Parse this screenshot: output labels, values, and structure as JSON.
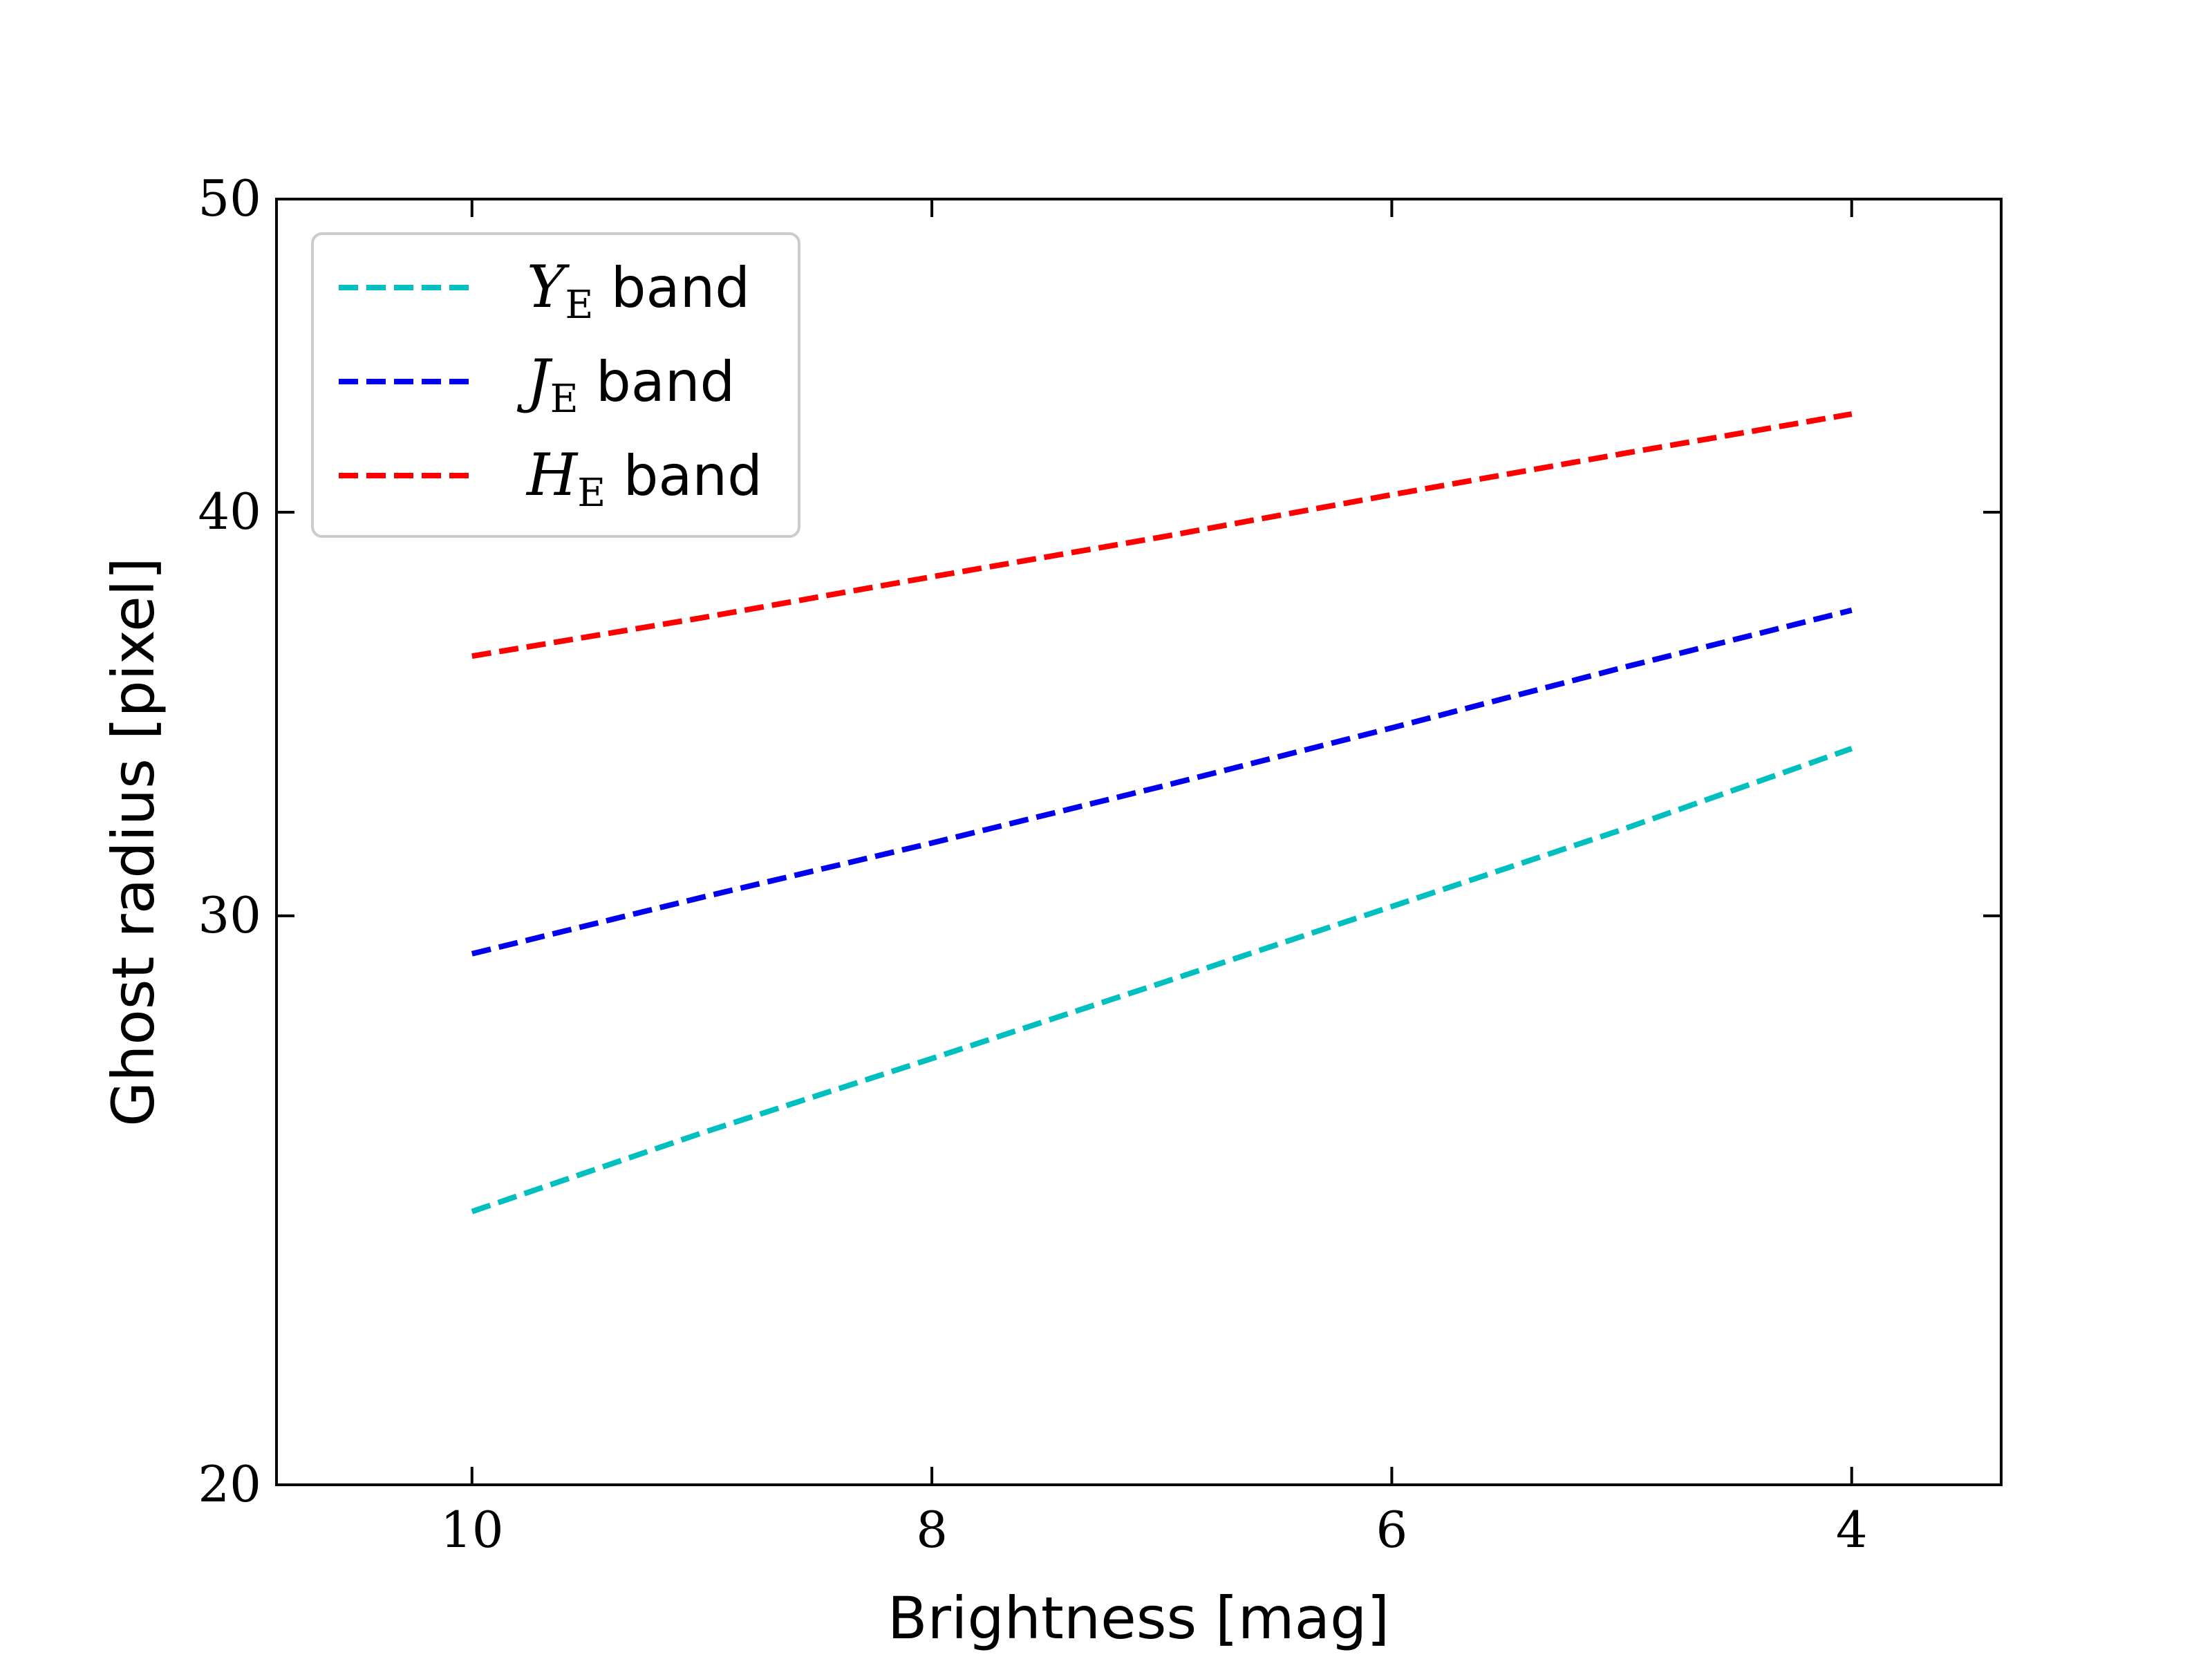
{
  "chart_data": {
    "type": "line",
    "xlabel": "Brightness [mag]",
    "ylabel": "Ghost radius [pixel]",
    "xlim": [
      10.85,
      3.35
    ],
    "ylim": [
      20,
      50
    ],
    "y_scale": "log",
    "x_inverted": true,
    "x_ticks": [
      10,
      8,
      6,
      4
    ],
    "y_ticks": [
      20,
      30,
      40,
      50
    ],
    "grid": false,
    "legend_position": "top-left",
    "series": [
      {
        "name": "Y",
        "subscript": "E",
        "suffix": " band",
        "color": "#00bfbf",
        "x": [
          10,
          9,
          8,
          7,
          6,
          5,
          4
        ],
        "y": [
          24.3,
          25.7,
          27.1,
          28.6,
          30.2,
          31.9,
          33.8
        ]
      },
      {
        "name": "J",
        "subscript": "E",
        "suffix": " band",
        "color": "#0000ee",
        "x": [
          10,
          9,
          8,
          7,
          6,
          5,
          4
        ],
        "y": [
          29.2,
          30.4,
          31.6,
          32.9,
          34.3,
          35.8,
          37.3
        ]
      },
      {
        "name": "H",
        "subscript": "E",
        "suffix": " band",
        "color": "#ff0000",
        "x": [
          10,
          9,
          8,
          7,
          6,
          5,
          4
        ],
        "y": [
          36.1,
          37.1,
          38.2,
          39.3,
          40.5,
          41.7,
          42.9
        ]
      }
    ]
  }
}
